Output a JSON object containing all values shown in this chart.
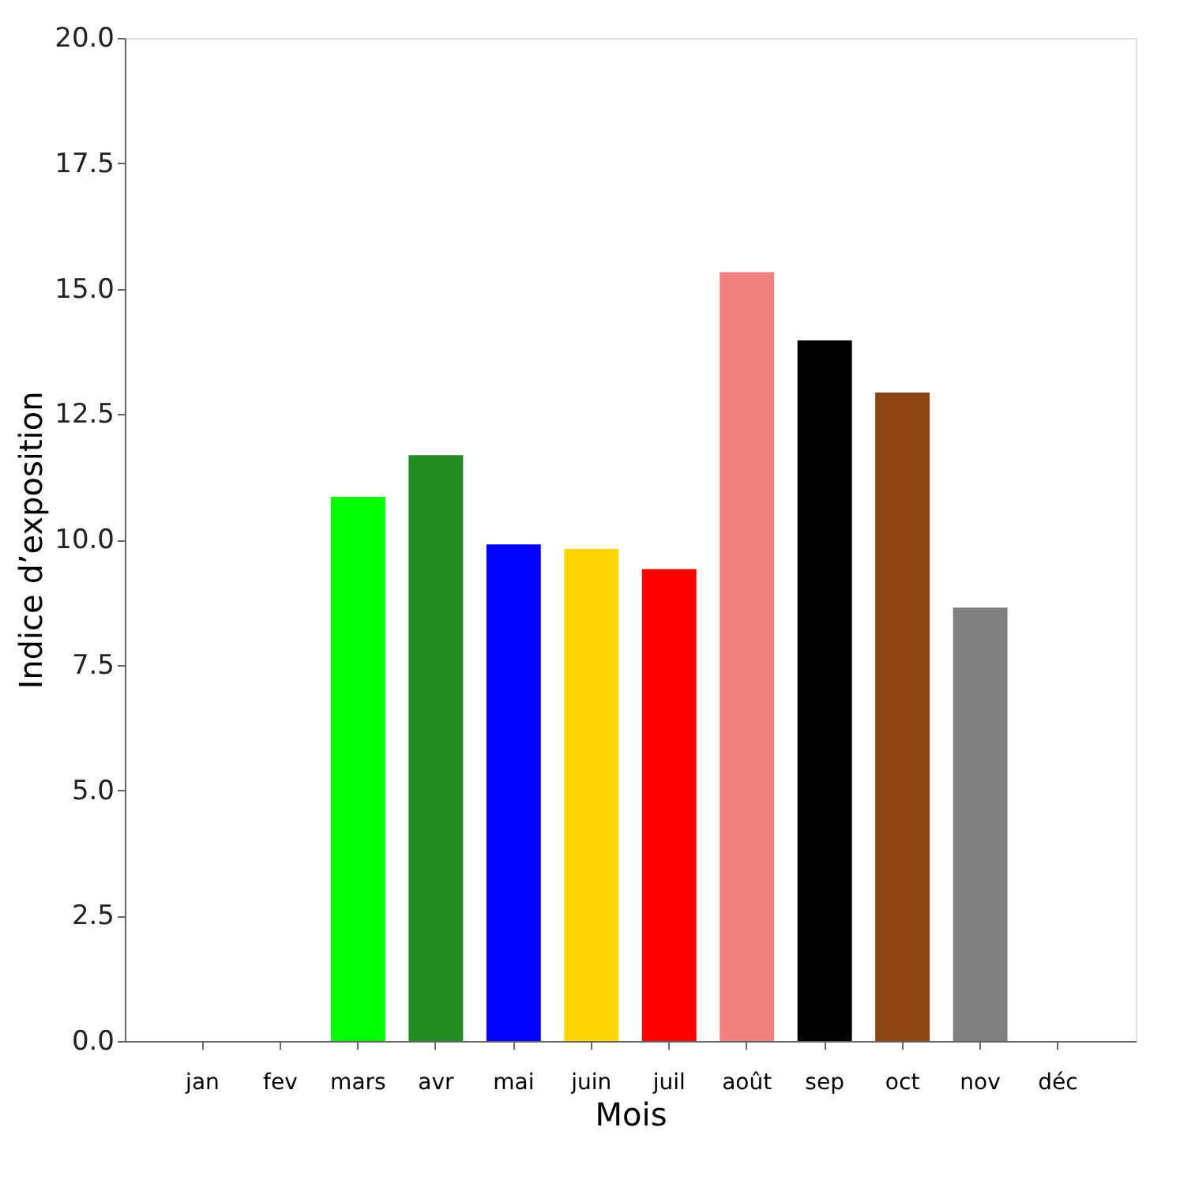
{
  "chart_data": {
    "type": "bar",
    "xlabel": "Mois",
    "ylabel": "Indice d’exposition",
    "categories": [
      "jan",
      "fev",
      "mars",
      "avr",
      "mai",
      "juin",
      "juil",
      "août",
      "sep",
      "oct",
      "nov",
      "déc"
    ],
    "values": [
      null,
      null,
      10.85,
      11.68,
      9.9,
      9.81,
      9.41,
      15.33,
      13.97,
      12.93,
      8.64,
      null
    ],
    "colors": [
      "#1f77b4",
      "#1f77b4",
      "#00ff00",
      "#228b22",
      "#0000ff",
      "#ffd700",
      "#ff0000",
      "#f08080",
      "#000000",
      "#8b4513",
      "#808080",
      "#1f77b4"
    ],
    "ylim": [
      0,
      20
    ],
    "yticks": [
      {
        "value": 0,
        "label": "0.0"
      },
      2.5,
      {
        "value": 5,
        "label": "5.0"
      },
      7.5,
      {
        "value": 10,
        "label": "10.0"
      },
      12.5,
      {
        "value": 15,
        "label": "15.0"
      },
      17.5,
      {
        "value": 20,
        "label": "20.0"
      }
    ],
    "grid": false
  }
}
